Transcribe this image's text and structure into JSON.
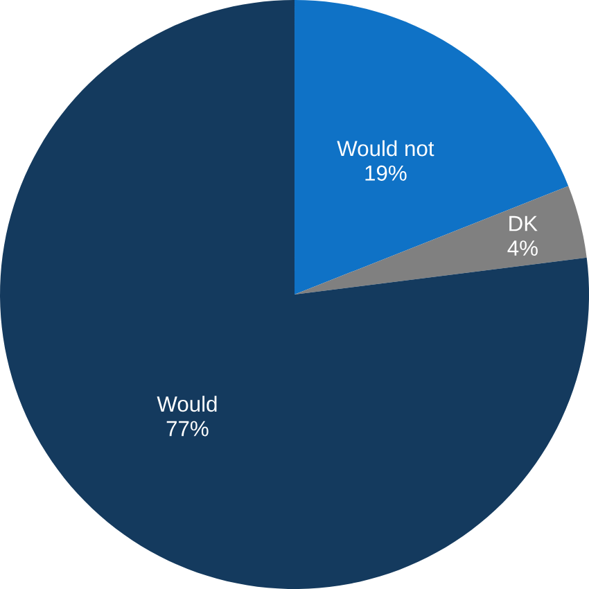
{
  "chart_data": {
    "type": "pie",
    "categories": [
      "Would not",
      "DK",
      "Would"
    ],
    "values": [
      19,
      4,
      77
    ],
    "colors": [
      "#0f72c6",
      "#808080",
      "#143a5e"
    ],
    "value_labels": [
      "19%",
      "4%",
      "77%"
    ]
  }
}
